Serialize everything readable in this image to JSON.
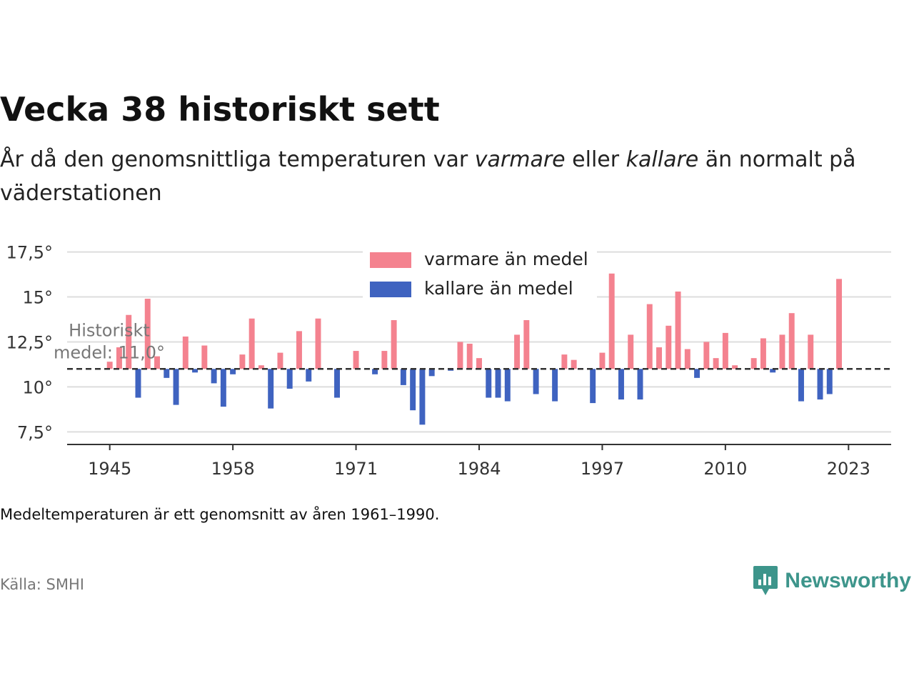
{
  "title": "Vecka 38 historiskt sett",
  "subtitle": {
    "part1": "År då den genomsnittliga temperaturen var ",
    "warm_word": "varmare",
    "part2": " eller ",
    "cold_word": "kallare",
    "part3": " än normalt på väderstationen"
  },
  "note": "Medeltemperaturen är ett genomsnitt av åren 1961–1990.",
  "source": "Källa: SMHI",
  "brand": {
    "name": "Newsworthy",
    "icon": "newsworthy-logo-icon",
    "color": "#3d958b"
  },
  "colors": {
    "warm": "#f4828f",
    "cold": "#3f63c0",
    "baseline": "#333333",
    "grid": "#dddddd",
    "axis": "#333333"
  },
  "chart_data": {
    "type": "bar",
    "baseline": 11.0,
    "baseline_label": [
      "Historiskt",
      "medel: 11,0°"
    ],
    "ylim": [
      6.8,
      18.0
    ],
    "yticks": [
      {
        "value": 7.5,
        "label": "7,5°"
      },
      {
        "value": 10,
        "label": "10°"
      },
      {
        "value": 12.5,
        "label": "12,5°"
      },
      {
        "value": 15,
        "label": "15°"
      },
      {
        "value": 17.5,
        "label": "17,5°"
      }
    ],
    "xlim": [
      1940.5,
      2027.5
    ],
    "xticks": [
      1945,
      1958,
      1971,
      1984,
      1997,
      2010,
      2023
    ],
    "legend_position": "top-center",
    "series": [
      {
        "name": "varmare än medel",
        "color": "#f4828f"
      },
      {
        "name": "kallare än medel",
        "color": "#3f63c0"
      }
    ],
    "x": [
      1945,
      1946,
      1947,
      1948,
      1949,
      1950,
      1951,
      1952,
      1953,
      1954,
      1955,
      1956,
      1957,
      1958,
      1959,
      1960,
      1961,
      1962,
      1963,
      1964,
      1965,
      1966,
      1967,
      1968,
      1969,
      1970,
      1971,
      1972,
      1973,
      1974,
      1975,
      1976,
      1977,
      1978,
      1979,
      1980,
      1981,
      1982,
      1983,
      1984,
      1985,
      1986,
      1987,
      1988,
      1989,
      1990,
      1991,
      1992,
      1993,
      1994,
      1995,
      1996,
      1997,
      1998,
      1999,
      2000,
      2001,
      2002,
      2003,
      2004,
      2005,
      2006,
      2007,
      2008,
      2009,
      2010,
      2011,
      2012,
      2013,
      2014,
      2015,
      2016,
      2017,
      2018,
      2019,
      2020,
      2021,
      2022,
      2023
    ],
    "values": [
      11.4,
      12.2,
      14.0,
      9.4,
      14.9,
      11.7,
      10.5,
      9.0,
      12.8,
      10.8,
      12.3,
      10.2,
      8.9,
      10.7,
      11.8,
      13.8,
      11.2,
      8.8,
      11.9,
      9.9,
      13.1,
      10.3,
      13.8,
      11.0,
      9.4,
      11.0,
      12.0,
      11.0,
      10.7,
      12.0,
      14.2,
      10.1,
      8.7,
      7.9,
      10.6,
      11.0,
      10.9,
      12.5,
      12.4,
      11.6,
      9.4,
      9.4,
      9.2,
      12.9,
      13.8,
      9.6,
      11.0,
      9.2,
      11.8,
      11.5,
      11.0,
      9.1,
      11.9,
      16.3,
      9.3,
      12.9,
      9.3,
      14.6,
      12.2,
      13.4,
      15.3,
      12.1,
      10.5,
      12.5,
      11.6,
      13.0,
      11.2,
      11.0,
      11.6,
      12.7,
      10.8,
      12.9,
      14.1,
      9.2,
      12.9,
      9.3,
      9.6,
      16.0,
      11.0
    ]
  }
}
